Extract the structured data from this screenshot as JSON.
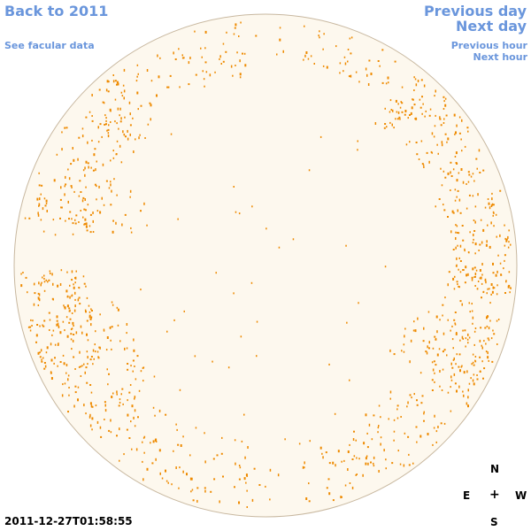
{
  "nav": {
    "back_label": "Back to 2011",
    "facular_label": "See facular data",
    "prev_day_label": "Previous day",
    "next_day_label": "Next day",
    "prev_hour_label": "Previous hour",
    "next_hour_label": "Next hour"
  },
  "compass": {
    "north": "N",
    "south": "S",
    "east": "E",
    "west": "W",
    "center": "+"
  },
  "timestamp": "2011-12-27T01:58:55",
  "colors": {
    "link": "#6a96dc",
    "disk_fill": "#fdf8ee",
    "disk_outline": "#c8b8a0",
    "facula": "#ee8a00"
  }
}
